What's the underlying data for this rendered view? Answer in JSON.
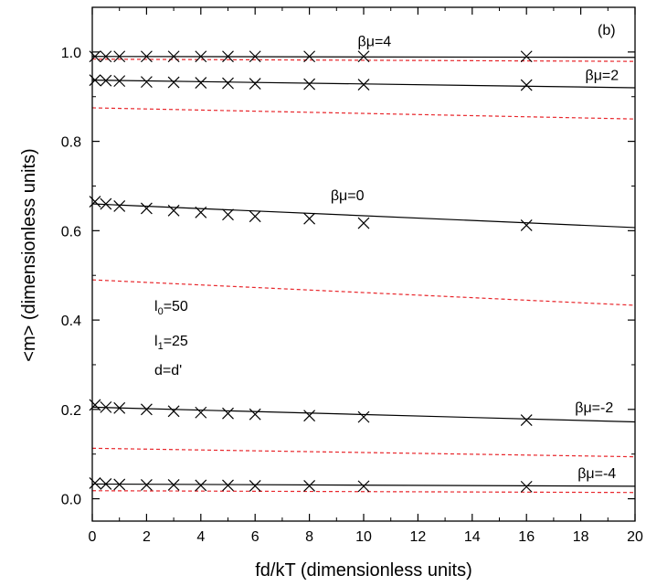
{
  "chart_data": {
    "type": "line",
    "panel_label": "(b)",
    "xlabel": "fd/kT (dimensionless units)",
    "ylabel": "<m> (dimensionless units)",
    "xlim": [
      0,
      20
    ],
    "ylim": [
      -0.05,
      1.1
    ],
    "xticks": [
      "0",
      "2",
      "4",
      "6",
      "8",
      "10",
      "12",
      "14",
      "16",
      "18",
      "20"
    ],
    "yticks": [
      "0.0",
      "0.2",
      "0.4",
      "0.6",
      "0.8",
      "1.0"
    ],
    "grid": false,
    "parameters": {
      "l0": {
        "base": "l",
        "sub": "0",
        "rest": "=50"
      },
      "l1": {
        "base": "l",
        "sub": "1",
        "rest": "=25"
      },
      "d": "d=d'"
    },
    "series": [
      {
        "name": "βμ=4",
        "solid_x": [
          0,
          20
        ],
        "solid_y": [
          0.99,
          0.988
        ],
        "dashed_x": [
          0,
          20
        ],
        "dashed_y": [
          0.984,
          0.979
        ],
        "marker_x": [
          0.1,
          0.5,
          1,
          2,
          3,
          4,
          5,
          6,
          8,
          10,
          16
        ],
        "marker_y": [
          0.99,
          0.99,
          0.99,
          0.99,
          0.99,
          0.99,
          0.99,
          0.99,
          0.99,
          0.99,
          0.99
        ]
      },
      {
        "name": "βμ=2",
        "solid_x": [
          0,
          20
        ],
        "solid_y": [
          0.937,
          0.92
        ],
        "dashed_x": [
          0,
          20
        ],
        "dashed_y": [
          0.875,
          0.85
        ],
        "marker_x": [
          0.1,
          0.5,
          1,
          2,
          3,
          4,
          5,
          6,
          8,
          10,
          16
        ],
        "marker_y": [
          0.937,
          0.936,
          0.935,
          0.933,
          0.932,
          0.931,
          0.93,
          0.929,
          0.928,
          0.927,
          0.926
        ]
      },
      {
        "name": "βμ=0",
        "solid_x": [
          0,
          20
        ],
        "solid_y": [
          0.66,
          0.607
        ],
        "dashed_x": [
          0,
          20
        ],
        "dashed_y": [
          0.49,
          0.433
        ],
        "marker_x": [
          0.1,
          0.5,
          1,
          2,
          3,
          4,
          5,
          6,
          8,
          10,
          16
        ],
        "marker_y": [
          0.665,
          0.66,
          0.655,
          0.65,
          0.645,
          0.641,
          0.636,
          0.632,
          0.627,
          0.617,
          0.612
        ]
      },
      {
        "name": "βμ=-2",
        "solid_x": [
          0,
          20
        ],
        "solid_y": [
          0.205,
          0.172
        ],
        "dashed_x": [
          0,
          20
        ],
        "dashed_y": [
          0.113,
          0.094
        ],
        "marker_x": [
          0.1,
          0.5,
          1,
          2,
          3,
          4,
          5,
          6,
          8,
          10,
          16
        ],
        "marker_y": [
          0.21,
          0.205,
          0.203,
          0.2,
          0.196,
          0.193,
          0.191,
          0.189,
          0.186,
          0.183,
          0.176
        ]
      },
      {
        "name": "βμ=-4",
        "solid_x": [
          0,
          20
        ],
        "solid_y": [
          0.033,
          0.028
        ],
        "dashed_x": [
          0,
          20
        ],
        "dashed_y": [
          0.018,
          0.014
        ],
        "marker_x": [
          0.1,
          0.5,
          1,
          2,
          3,
          4,
          5,
          6,
          8,
          10,
          16
        ],
        "marker_y": [
          0.035,
          0.033,
          0.032,
          0.031,
          0.031,
          0.03,
          0.03,
          0.029,
          0.029,
          0.028,
          0.027
        ]
      }
    ],
    "colors": {
      "solid": "#000000",
      "dashed": "#e8262b",
      "marker": "#000000",
      "axes": "#000000"
    }
  }
}
